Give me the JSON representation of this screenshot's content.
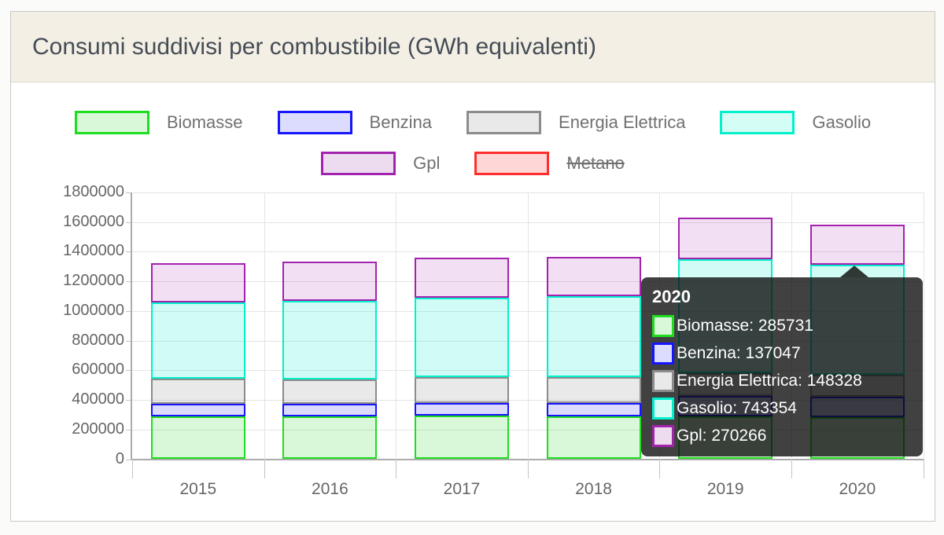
{
  "header": {
    "title": "Consumi suddivisi per combustibile (GWh equivalenti)"
  },
  "chart_data": {
    "type": "bar",
    "stacked": true,
    "title": "Consumi suddivisi per combustibile (GWh equivalenti)",
    "xlabel": "",
    "ylabel": "",
    "categories": [
      "2015",
      "2016",
      "2017",
      "2018",
      "2019",
      "2020"
    ],
    "series": [
      {
        "name": "Biomasse",
        "border": "#1fdd1f",
        "fill": "rgba(0,200,0,0.15)",
        "swatch_fill": "#d9f7d9",
        "hidden": false,
        "values": [
          288000,
          287000,
          293000,
          291000,
          289000,
          285731
        ]
      },
      {
        "name": "Benzina",
        "border": "#1515ff",
        "fill": "rgba(30,30,255,0.16)",
        "swatch_fill": "#dcdcfe",
        "hidden": false,
        "values": [
          84000,
          86000,
          88000,
          86000,
          138000,
          137047
        ]
      },
      {
        "name": "Energia Elettrica",
        "border": "#8c8c8c",
        "fill": "rgba(100,100,100,0.14)",
        "swatch_fill": "#e9e9e9",
        "hidden": false,
        "values": [
          170000,
          167000,
          172000,
          177000,
          151000,
          148328
        ]
      },
      {
        "name": "Gasolio",
        "border": "#00f0cc",
        "fill": "rgba(0,240,200,0.18)",
        "swatch_fill": "#d4fdf5",
        "hidden": false,
        "values": [
          518000,
          528000,
          537000,
          546000,
          773000,
          743354
        ]
      },
      {
        "name": "Gpl",
        "border": "#a322ae",
        "fill": "rgba(165,30,175,0.14)",
        "swatch_fill": "#eddcf0",
        "hidden": false,
        "values": [
          262000,
          266000,
          271000,
          265000,
          281000,
          270266
        ]
      },
      {
        "name": "Metano",
        "border": "#ff2d2d",
        "fill": "rgba(255,30,30,0.18)",
        "swatch_fill": "#ffd6d6",
        "hidden": true,
        "values": [
          0,
          0,
          0,
          0,
          0,
          0
        ]
      }
    ],
    "ylim": [
      0,
      1800000
    ],
    "ytick_step": 200000,
    "ytick_labels": [
      "1800000",
      "1600000",
      "1400000",
      "1200000",
      "1000000",
      "800000",
      "600000",
      "400000",
      "200000",
      "0"
    ],
    "grid": true,
    "legend_position": "top"
  },
  "tooltip": {
    "title": "2020",
    "rows": [
      {
        "series": "Biomasse",
        "value": "285731"
      },
      {
        "series": "Benzina",
        "value": "137047"
      },
      {
        "series": "Energia Elettrica",
        "value": "148328"
      },
      {
        "series": "Gasolio",
        "value": "743354"
      },
      {
        "series": "Gpl",
        "value": "270266"
      }
    ]
  }
}
